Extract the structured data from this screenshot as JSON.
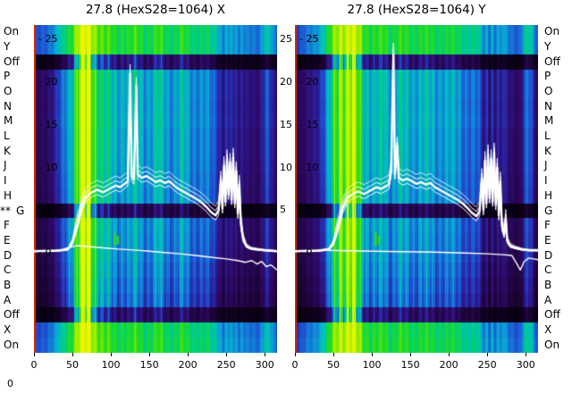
{
  "corner_label": "0",
  "marker": {
    "text": "**",
    "row_index": 12
  },
  "row_labels": [
    "On",
    "Y",
    "Off",
    "P",
    "O",
    "N",
    "M",
    "L",
    "K",
    "J",
    "I",
    "H",
    "G",
    "F",
    "E",
    "D",
    "C",
    "B",
    "A",
    "Off",
    "X",
    "On"
  ],
  "chart_data": {
    "type": "heatmap",
    "description": "Two side-by-side spectrogram heatmaps (X and Y planes) with overlaid white spectrum traces and categorical element rows On..Off..On",
    "xlim": [
      0,
      316
    ],
    "ylim": [
      -11.7,
      26.7
    ],
    "x_ticks": [
      0,
      50,
      100,
      150,
      200,
      250,
      300
    ],
    "y_ticks": {
      "values": [
        25,
        20,
        15,
        10,
        5,
        0
      ],
      "labels": [
        "- 25",
        "- 20",
        "- 15",
        "- 10",
        "- 5",
        "- 0"
      ]
    },
    "gap_ticks": {
      "values": [
        25,
        20,
        15,
        10,
        5
      ],
      "labels": [
        "25",
        "20",
        "15",
        "10",
        "5"
      ]
    },
    "row_factors": [
      1.9,
      1.9,
      0.38,
      1.0,
      1.0,
      0.98,
      1.0,
      0.95,
      0.95,
      0.93,
      0.9,
      0.88,
      0.3,
      0.85,
      0.82,
      0.8,
      0.75,
      0.7,
      0.65,
      0.35,
      1.8,
      1.9
    ],
    "col_profile": [
      [
        0,
        0.16
      ],
      [
        3,
        0.2
      ],
      [
        8,
        0.22
      ],
      [
        15,
        0.26
      ],
      [
        25,
        0.33
      ],
      [
        35,
        0.44
      ],
      [
        45,
        0.62
      ],
      [
        52,
        0.8
      ],
      [
        58,
        0.93
      ],
      [
        70,
        0.95
      ],
      [
        80,
        0.84
      ],
      [
        90,
        0.7
      ],
      [
        98,
        0.64
      ],
      [
        108,
        0.61
      ],
      [
        116,
        0.66
      ],
      [
        124,
        0.6
      ],
      [
        132,
        0.66
      ],
      [
        142,
        0.61
      ],
      [
        152,
        0.6
      ],
      [
        162,
        0.65
      ],
      [
        172,
        0.6
      ],
      [
        182,
        0.58
      ],
      [
        192,
        0.62
      ],
      [
        202,
        0.58
      ],
      [
        212,
        0.56
      ],
      [
        222,
        0.53
      ],
      [
        230,
        0.5
      ],
      [
        238,
        0.46
      ],
      [
        242,
        0.38
      ],
      [
        246,
        0.28
      ],
      [
        249,
        0.44
      ],
      [
        252,
        0.27
      ],
      [
        256,
        0.42
      ],
      [
        259,
        0.25
      ],
      [
        263,
        0.4
      ],
      [
        266,
        0.26
      ],
      [
        270,
        0.38
      ],
      [
        274,
        0.32
      ],
      [
        279,
        0.29
      ],
      [
        286,
        0.26
      ],
      [
        292,
        0.24
      ],
      [
        297,
        0.38
      ],
      [
        302,
        0.5
      ],
      [
        307,
        0.44
      ],
      [
        311,
        0.3
      ],
      [
        316,
        0.24
      ]
    ],
    "colormap": [
      [
        0,
        "#06000e"
      ],
      [
        0.12,
        "#1b0333"
      ],
      [
        0.25,
        "#2e0a69"
      ],
      [
        0.35,
        "#29219e"
      ],
      [
        0.45,
        "#1e50d2"
      ],
      [
        0.55,
        "#108fd8"
      ],
      [
        0.63,
        "#00bcc6"
      ],
      [
        0.72,
        "#00d077"
      ],
      [
        0.8,
        "#22dc1f"
      ],
      [
        0.88,
        "#7dea00"
      ],
      [
        1,
        "#eef600"
      ]
    ],
    "edge_line_color": "#d42a00",
    "line_color": "#ffffff",
    "green_mark_color": "#3ae000",
    "green_marks": [
      {
        "x": 105,
        "y1": 0.8,
        "y2": 2.4
      },
      {
        "x": 109,
        "y1": 1.0,
        "y2": 2.0
      }
    ],
    "panels": [
      {
        "title": "27.8 (HexS28=1064) X",
        "line_main": [
          [
            0,
            0.2
          ],
          [
            30,
            0.25
          ],
          [
            44,
            0.4
          ],
          [
            50,
            1.2
          ],
          [
            56,
            3.2
          ],
          [
            62,
            5.4
          ],
          [
            68,
            6.6
          ],
          [
            75,
            7.1
          ],
          [
            82,
            7.4
          ],
          [
            90,
            7.1
          ],
          [
            98,
            7.5
          ],
          [
            106,
            7.9
          ],
          [
            112,
            7.7
          ],
          [
            118,
            8.1
          ],
          [
            122,
            8.4
          ],
          [
            125,
            21.0
          ],
          [
            127,
            9.0
          ],
          [
            130,
            8.6
          ],
          [
            133,
            19.5
          ],
          [
            135,
            9.2
          ],
          [
            140,
            8.8
          ],
          [
            146,
            9.0
          ],
          [
            152,
            8.7
          ],
          [
            158,
            8.3
          ],
          [
            164,
            8.5
          ],
          [
            170,
            8.2
          ],
          [
            176,
            8.4
          ],
          [
            182,
            7.9
          ],
          [
            188,
            7.5
          ],
          [
            194,
            7.2
          ],
          [
            200,
            6.9
          ],
          [
            206,
            6.6
          ],
          [
            212,
            6.3
          ],
          [
            218,
            5.9
          ],
          [
            224,
            5.4
          ],
          [
            230,
            4.8
          ],
          [
            236,
            4.4
          ],
          [
            240,
            5.0
          ],
          [
            243,
            8.5
          ],
          [
            245,
            5.2
          ],
          [
            247,
            10.2
          ],
          [
            249,
            6.0
          ],
          [
            251,
            11.0
          ],
          [
            253,
            6.8
          ],
          [
            255,
            10.6
          ],
          [
            257,
            6.2
          ],
          [
            259,
            11.2
          ],
          [
            261,
            5.8
          ],
          [
            263,
            9.6
          ],
          [
            265,
            4.6
          ],
          [
            267,
            8.0
          ],
          [
            269,
            3.4
          ],
          [
            272,
            1.6
          ],
          [
            276,
            0.8
          ],
          [
            282,
            0.5
          ],
          [
            290,
            0.4
          ],
          [
            300,
            0.3
          ],
          [
            316,
            0.2
          ]
        ],
        "line_base": [
          [
            40,
            0.5
          ],
          [
            55,
            0.85
          ],
          [
            70,
            0.75
          ],
          [
            90,
            0.6
          ],
          [
            110,
            0.45
          ],
          [
            130,
            0.35
          ],
          [
            150,
            0.2
          ],
          [
            170,
            0.05
          ],
          [
            190,
            -0.1
          ],
          [
            210,
            -0.3
          ],
          [
            230,
            -0.5
          ],
          [
            250,
            -0.7
          ],
          [
            265,
            -0.9
          ],
          [
            275,
            -1.1
          ],
          [
            283,
            -0.9
          ],
          [
            290,
            -1.3
          ],
          [
            296,
            -1.0
          ],
          [
            302,
            -1.6
          ],
          [
            308,
            -1.4
          ],
          [
            316,
            -2.0
          ]
        ]
      },
      {
        "title": "27.8 (HexS28=1064) Y",
        "line_main": [
          [
            0,
            0.2
          ],
          [
            30,
            0.25
          ],
          [
            44,
            0.4
          ],
          [
            50,
            1.1
          ],
          [
            56,
            3.0
          ],
          [
            62,
            5.2
          ],
          [
            68,
            6.4
          ],
          [
            75,
            6.9
          ],
          [
            82,
            7.2
          ],
          [
            90,
            6.9
          ],
          [
            98,
            7.3
          ],
          [
            106,
            7.7
          ],
          [
            112,
            7.5
          ],
          [
            118,
            7.8
          ],
          [
            122,
            8.0
          ],
          [
            125,
            9.5
          ],
          [
            128,
            23.5
          ],
          [
            130,
            9.2
          ],
          [
            133,
            12.5
          ],
          [
            135,
            8.8
          ],
          [
            140,
            8.5
          ],
          [
            146,
            8.7
          ],
          [
            152,
            8.4
          ],
          [
            158,
            8.1
          ],
          [
            164,
            8.3
          ],
          [
            170,
            8.0
          ],
          [
            176,
            8.2
          ],
          [
            182,
            7.7
          ],
          [
            188,
            7.4
          ],
          [
            194,
            7.1
          ],
          [
            200,
            6.8
          ],
          [
            206,
            6.5
          ],
          [
            212,
            6.2
          ],
          [
            218,
            5.8
          ],
          [
            224,
            5.3
          ],
          [
            230,
            4.7
          ],
          [
            236,
            4.3
          ],
          [
            240,
            4.9
          ],
          [
            243,
            8.8
          ],
          [
            245,
            5.0
          ],
          [
            247,
            10.8
          ],
          [
            249,
            5.8
          ],
          [
            251,
            11.6
          ],
          [
            253,
            6.4
          ],
          [
            255,
            11.0
          ],
          [
            257,
            6.0
          ],
          [
            259,
            11.8
          ],
          [
            261,
            5.6
          ],
          [
            263,
            10.0
          ],
          [
            265,
            4.4
          ],
          [
            267,
            8.4
          ],
          [
            269,
            3.2
          ],
          [
            272,
            2.2
          ],
          [
            274,
            4.0
          ],
          [
            276,
            1.4
          ],
          [
            280,
            0.8
          ],
          [
            286,
            0.6
          ],
          [
            295,
            0.4
          ],
          [
            305,
            0.3
          ],
          [
            316,
            0.3
          ]
        ],
        "line_base": [
          [
            40,
            0.3
          ],
          [
            70,
            0.25
          ],
          [
            100,
            0.2
          ],
          [
            140,
            0.15
          ],
          [
            180,
            0.1
          ],
          [
            220,
            0.0
          ],
          [
            250,
            -0.1
          ],
          [
            270,
            -0.2
          ],
          [
            282,
            -0.3
          ],
          [
            288,
            -1.2
          ],
          [
            293,
            -2.0
          ],
          [
            298,
            -1.0
          ],
          [
            304,
            -0.6
          ],
          [
            310,
            -0.7
          ],
          [
            316,
            -0.8
          ]
        ]
      }
    ]
  }
}
